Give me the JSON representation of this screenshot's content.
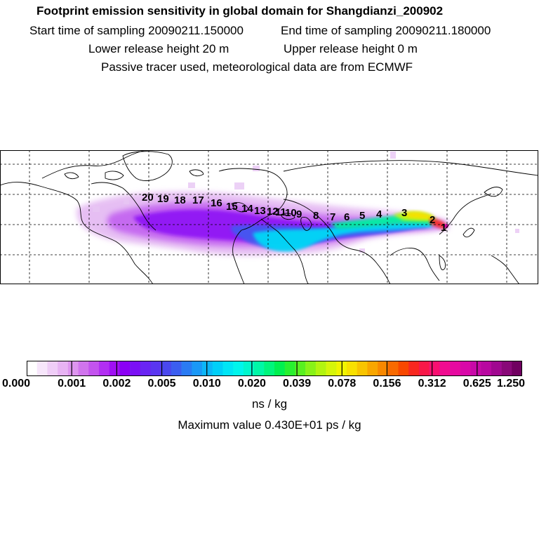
{
  "header": {
    "title": "Footprint emission sensitivity in global domain for Shangdianzi_200902",
    "start_time": "Start time of sampling 20090211.150000",
    "end_time": "End time of sampling 20090211.180000",
    "lower_height": "Lower release height   20 m",
    "upper_height": "Upper release height    0 m",
    "note": "Passive tracer used, meteorological data are from ECMWF"
  },
  "map": {
    "trajectory_labels": [
      "20",
      "19",
      "18",
      "17",
      "16",
      "15",
      "14",
      "13",
      "12",
      "11",
      "10",
      "9",
      "8",
      "7",
      "6",
      "5",
      "4",
      "3",
      "2",
      "1"
    ]
  },
  "colorbar": {
    "ticks": [
      "0.000",
      "0.001",
      "0.002",
      "0.005",
      "0.010",
      "0.020",
      "0.039",
      "0.078",
      "0.156",
      "0.312",
      "0.625",
      "1.250"
    ],
    "colors": [
      "#ffffff",
      "#f7e6fb",
      "#efcdf7",
      "#e7b3f3",
      "#dd95ef",
      "#d074ed",
      "#c353ee",
      "#b22ff2",
      "#a010f4",
      "#8b00f5",
      "#7b10f5",
      "#6a24f3",
      "#5a36f0",
      "#4a48ee",
      "#3b5ef0",
      "#2a7bf3",
      "#1a98f6",
      "#0cb6f8",
      "#00cff8",
      "#00e5f5",
      "#00f5ec",
      "#00f7cd",
      "#00f7a6",
      "#00f57c",
      "#00f050",
      "#28f030",
      "#58f020",
      "#88f218",
      "#b2f410",
      "#d5f50a",
      "#f0f400",
      "#f8e000",
      "#f8c400",
      "#f8a600",
      "#f88800",
      "#f86a00",
      "#f84800",
      "#f82820",
      "#f81848",
      "#f80f70",
      "#f00c90",
      "#e60aa0",
      "#d808a8",
      "#c808a8",
      "#b808a0",
      "#a00890",
      "#880878",
      "#700060"
    ],
    "unit": "ns / kg",
    "max_value": "Maximum value  0.430E+01 ps / kg"
  }
}
